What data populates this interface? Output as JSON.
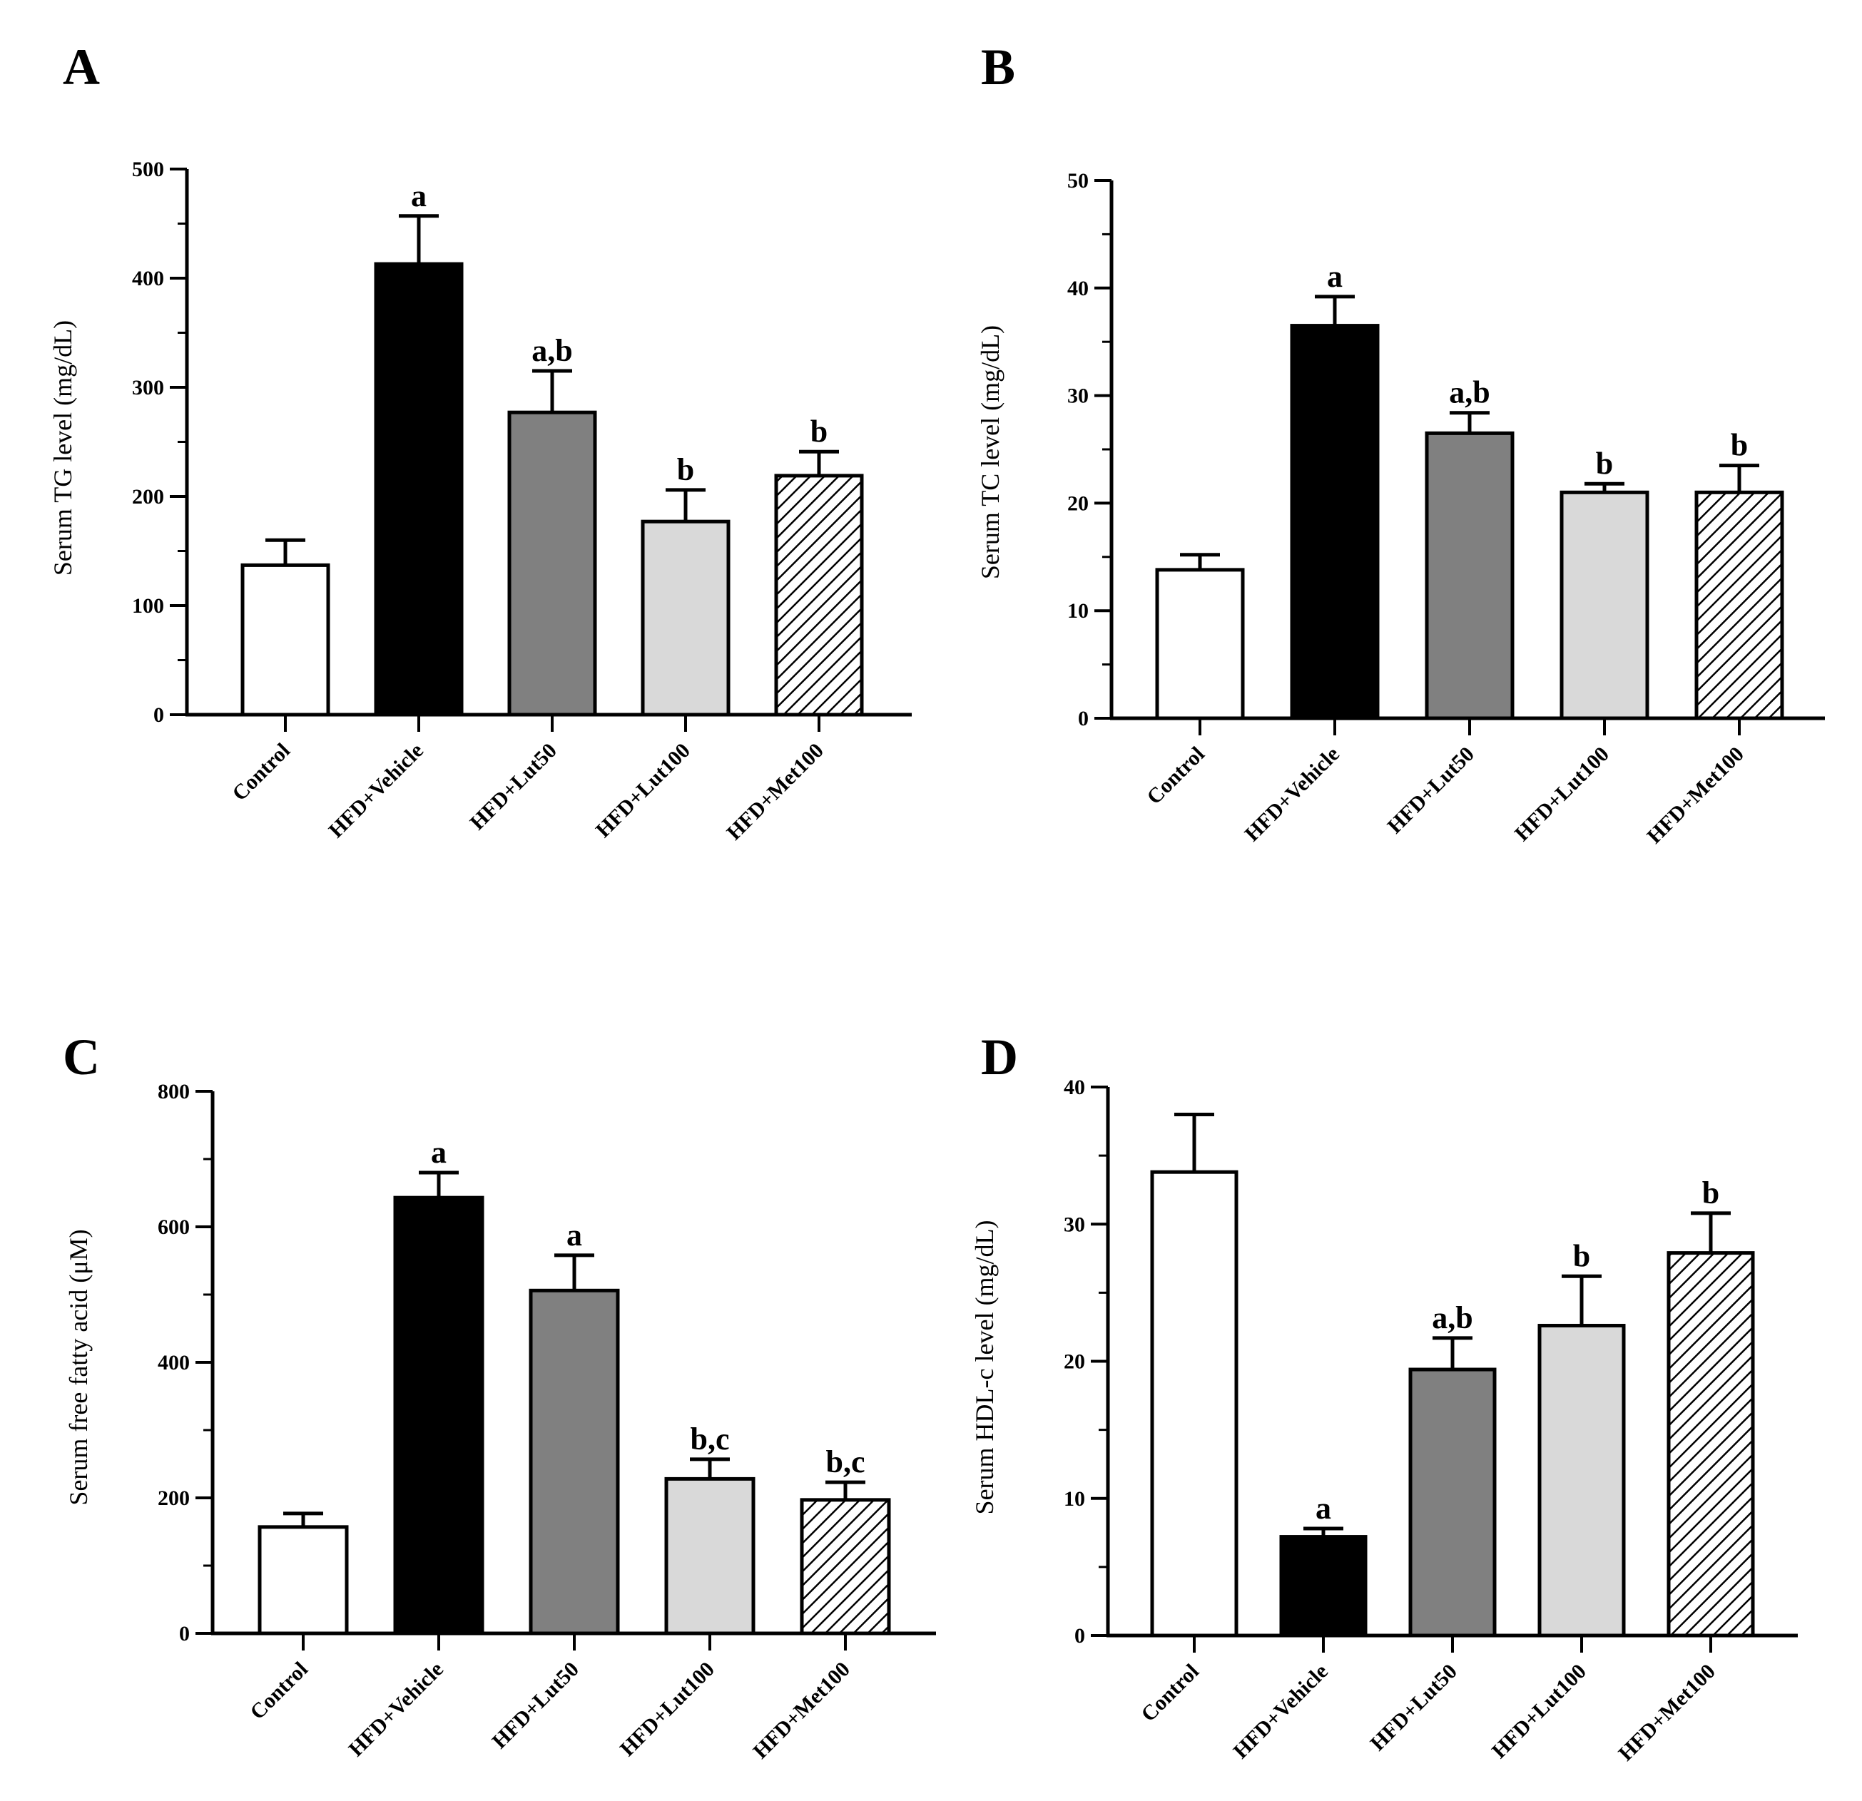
{
  "chart_data": [
    {
      "type": "bar",
      "panel": "A",
      "ylabel": "Serum TG level (mg/dL)",
      "ylim": [
        0,
        500
      ],
      "yticks": [
        "0",
        "100",
        "200",
        "300",
        "400",
        "500"
      ],
      "categories": [
        "Control",
        "HFD+Vehicle",
        "HFD+Lut50",
        "HFD+Lut100",
        "HFD+Met100"
      ],
      "values": [
        137,
        413,
        277,
        177,
        219
      ],
      "errors": [
        23,
        44,
        38,
        29,
        22
      ],
      "significance": [
        "",
        "a",
        "a,b",
        "b",
        "b"
      ]
    },
    {
      "type": "bar",
      "panel": "B",
      "ylabel": "Serum TC level (mg/dL)",
      "ylim": [
        0,
        50
      ],
      "yticks": [
        "0",
        "10",
        "20",
        "30",
        "40",
        "50"
      ],
      "categories": [
        "Control",
        "HFD+Vehicle",
        "HFD+Lut50",
        "HFD+Lut100",
        "HFD+Met100"
      ],
      "values": [
        13.8,
        36.5,
        26.5,
        21.0,
        21.0
      ],
      "errors": [
        1.4,
        2.7,
        1.9,
        0.8,
        2.5
      ],
      "significance": [
        "",
        "a",
        "a,b",
        "b",
        "b"
      ]
    },
    {
      "type": "bar",
      "panel": "C",
      "ylabel": "Serum free fatty acid (μM)",
      "ylim": [
        0,
        800
      ],
      "yticks": [
        "0",
        "200",
        "400",
        "600",
        "800"
      ],
      "categories": [
        "Control",
        "HFD+Vehicle",
        "HFD+Lut50",
        "HFD+Lut100",
        "HFD+Met100"
      ],
      "values": [
        157,
        643,
        506,
        228,
        197
      ],
      "errors": [
        20,
        37,
        52,
        29,
        26
      ],
      "significance": [
        "",
        "a",
        "a",
        "b,c",
        "b,c"
      ]
    },
    {
      "type": "bar",
      "panel": "D",
      "ylabel": "Serum HDL-c level (mg/dL)",
      "ylim": [
        0,
        40
      ],
      "yticks": [
        "0",
        "10",
        "20",
        "30",
        "40"
      ],
      "categories": [
        "Control",
        "HFD+Vehicle",
        "HFD+Lut50",
        "HFD+Lut100",
        "HFD+Met100"
      ],
      "values": [
        33.8,
        7.2,
        19.4,
        22.6,
        27.9
      ],
      "errors": [
        4.2,
        0.6,
        2.3,
        3.6,
        2.9
      ],
      "significance": [
        "",
        "a",
        "a,b",
        "b",
        "b"
      ]
    }
  ],
  "bar_styles": [
    {
      "fill": "#ffffff",
      "pattern": "none"
    },
    {
      "fill": "#000000",
      "pattern": "none"
    },
    {
      "fill": "#808080",
      "pattern": "none"
    },
    {
      "fill": "#d9d9d9",
      "pattern": "none"
    },
    {
      "fill": "#ffffff",
      "pattern": "hatch"
    }
  ]
}
